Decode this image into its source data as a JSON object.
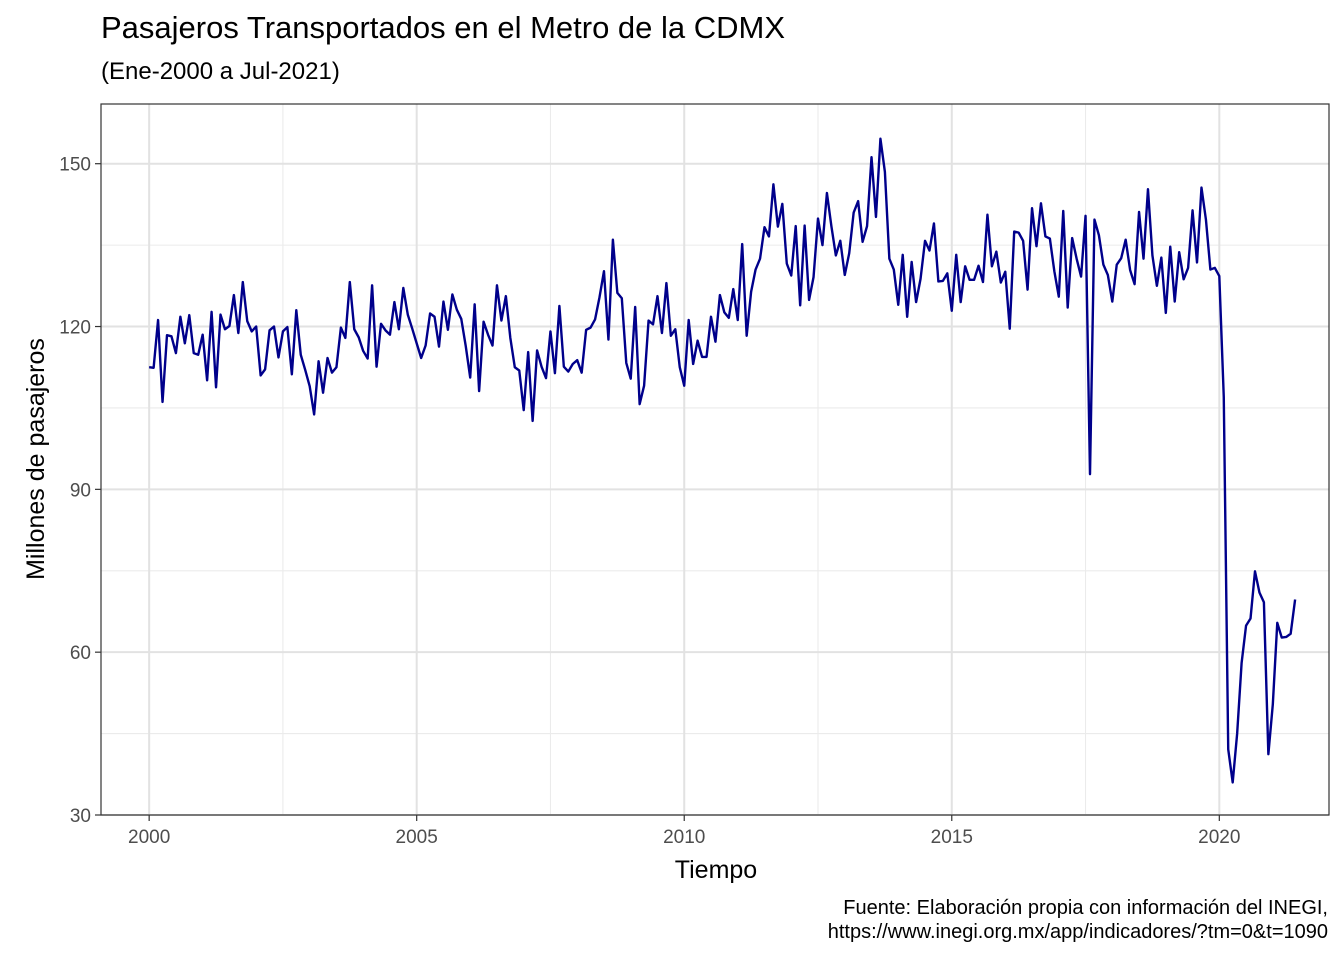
{
  "title": "Pasajeros Transportados en el Metro de la CDMX",
  "subtitle": "(Ene-2000 a Jul-2021)",
  "caption": {
    "line1": "Fuente: Elaboración propia con información del INEGI,",
    "line2": "https://www.inegi.org.mx/app/indicadores/?tm=0&t=1090"
  },
  "chart_data": {
    "type": "line",
    "title": "Pasajeros Transportados en el Metro de la CDMX",
    "subtitle": "(Ene-2000 a Jul-2021)",
    "xlabel": "Tiempo",
    "ylabel": "Millones de pasajeros",
    "xlim": [
      1999.1,
      2022.05
    ],
    "ylim": [
      30,
      161
    ],
    "x_ticks": [
      2000,
      2005,
      2010,
      2015,
      2020
    ],
    "y_ticks": [
      30,
      60,
      90,
      120,
      150
    ],
    "grid": true,
    "line_color": "#00008B",
    "series": [
      {
        "start": "2000-01",
        "frequency": "monthly",
        "values": [
          112.5,
          112.4,
          121.2,
          106.1,
          118.4,
          118.2,
          115.1,
          121.8,
          116.9,
          122.1,
          115.1,
          114.8,
          118.5,
          110.1,
          122.7,
          108.8,
          122.2,
          119.5,
          120.1,
          125.8,
          118.8,
          128.2,
          121.0,
          119.1,
          120.0,
          111.0,
          112.1,
          119.3,
          120.0,
          114.3,
          119.1,
          119.9,
          111.2,
          123.0,
          114.8,
          112.0,
          109.0,
          103.8,
          113.6,
          107.8,
          114.2,
          111.5,
          112.5,
          119.8,
          117.9,
          128.2,
          119.5,
          118.0,
          115.5,
          114.1,
          127.6,
          112.6,
          120.5,
          119.3,
          118.5,
          124.5,
          119.5,
          127.1,
          122.2,
          119.6,
          116.9,
          114.2,
          116.5,
          122.4,
          121.8,
          116.3,
          124.6,
          119.4,
          125.9,
          123.1,
          121.4,
          116.4,
          110.6,
          124.1,
          108.1,
          120.9,
          118.5,
          116.5,
          127.6,
          121.1,
          125.6,
          117.9,
          112.5,
          111.9,
          104.6,
          115.3,
          102.6,
          115.6,
          112.6,
          110.5,
          119.1,
          111.4,
          123.8,
          112.6,
          111.7,
          113.1,
          113.8,
          111.5,
          119.4,
          119.8,
          121.3,
          125.4,
          130.2,
          117.6,
          136.0,
          126.2,
          125.2,
          113.3,
          110.4,
          123.6,
          105.7,
          109.1,
          121.1,
          120.4,
          125.6,
          118.8,
          128.0,
          118.3,
          119.5,
          112.5,
          109.1,
          121.2,
          113.1,
          117.4,
          114.4,
          114.4,
          121.8,
          117.2,
          125.8,
          122.6,
          121.6,
          126.9,
          121.2,
          135.2,
          118.3,
          126.4,
          130.5,
          132.5,
          138.3,
          136.6,
          146.2,
          138.4,
          142.6,
          131.6,
          129.4,
          138.5,
          123.9,
          138.6,
          124.9,
          129.1,
          139.9,
          135.0,
          144.6,
          138.5,
          133.1,
          135.8,
          129.5,
          133.5,
          141.0,
          143.1,
          135.6,
          138.5,
          151.2,
          140.2,
          154.6,
          148.5,
          132.5,
          130.5,
          124.0,
          133.2,
          121.8,
          131.9,
          124.5,
          128.8,
          135.8,
          134.0,
          139.0,
          128.3,
          128.4,
          129.8,
          122.9,
          133.2,
          124.5,
          131.1,
          128.6,
          128.6,
          131.2,
          128.2,
          140.6,
          131.1,
          133.8,
          128.1,
          130.1,
          119.6,
          137.5,
          137.3,
          135.8,
          126.8,
          141.8,
          134.8,
          142.7,
          136.6,
          136.2,
          130.2,
          125.5,
          141.3,
          123.5,
          136.3,
          132.5,
          129.2,
          140.4,
          92.8,
          139.7,
          136.8,
          131.4,
          129.5,
          124.6,
          131.4,
          132.6,
          136.0,
          130.4,
          127.8,
          141.1,
          132.5,
          145.3,
          133.1,
          127.5,
          132.7,
          122.5,
          134.7,
          124.6,
          133.7,
          128.7,
          130.8,
          141.4,
          131.8,
          145.6,
          139.7,
          130.5,
          130.8,
          129.3,
          107.0,
          42.1,
          36.0,
          45.0,
          58.0,
          64.9,
          66.2,
          74.9,
          71.0,
          69.2,
          41.2,
          50.4,
          65.4,
          62.7,
          62.8,
          63.4,
          69.7
        ]
      }
    ]
  }
}
